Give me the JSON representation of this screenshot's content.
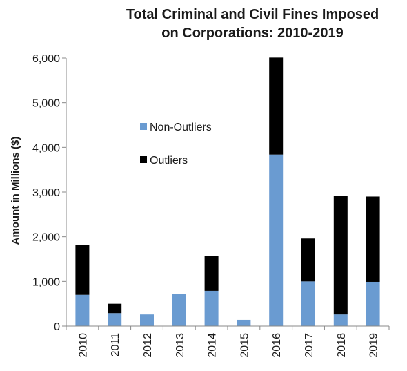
{
  "chart_data": {
    "type": "bar",
    "stacked": true,
    "title": [
      "Total Criminal and Civil Fines Imposed",
      "on Corporations:  2010-2019"
    ],
    "ylabel": "Amount in Millions ($)",
    "xlabel": "",
    "categories": [
      "2010",
      "2011",
      "2012",
      "2013",
      "2014",
      "2015",
      "2016",
      "2017",
      "2018",
      "2019"
    ],
    "ylim": [
      0,
      6000
    ],
    "yticks": [
      0,
      1000,
      2000,
      3000,
      4000,
      5000,
      6000
    ],
    "ytick_labels": [
      "0",
      "1,000",
      "2,000",
      "3,000",
      "4,000",
      "5,000",
      "6,000"
    ],
    "series": [
      {
        "name": "Non-Outliers",
        "color": "#6a9bd1",
        "values": [
          700,
          290,
          260,
          720,
          790,
          140,
          3840,
          1000,
          260,
          990
        ]
      },
      {
        "name": "Outliers",
        "color": "#000000",
        "values": [
          1110,
          210,
          0,
          0,
          780,
          0,
          2170,
          960,
          2650,
          1910
        ]
      }
    ],
    "legend_position": "upper-left inside plot",
    "grid": false
  }
}
